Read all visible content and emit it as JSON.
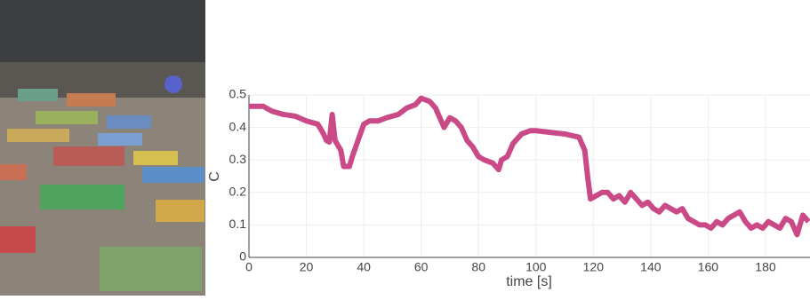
{
  "chart_data": {
    "type": "line",
    "x_label": "time [s]",
    "y_label": "C",
    "x": [
      0,
      5,
      8,
      12,
      16,
      20,
      24,
      26,
      27,
      28,
      29,
      30,
      32,
      33,
      35,
      36,
      38,
      40,
      42,
      45,
      48,
      52,
      55,
      58,
      60,
      63,
      65,
      67,
      68,
      70,
      72,
      74,
      76,
      78,
      80,
      82,
      85,
      87,
      88,
      90,
      92,
      95,
      98,
      100,
      105,
      110,
      115,
      117,
      118,
      119,
      121,
      123,
      125,
      127,
      129,
      131,
      133,
      135,
      137,
      139,
      141,
      143,
      145,
      147,
      149,
      151,
      153,
      155,
      157,
      159,
      161,
      163,
      165,
      167,
      169,
      171,
      173,
      175,
      177,
      179,
      181,
      183,
      185,
      187,
      189,
      191,
      193,
      195
    ],
    "series": [
      {
        "name": "C",
        "color": "#c94a87",
        "values": [
          0.465,
          0.465,
          0.45,
          0.44,
          0.435,
          0.42,
          0.41,
          0.38,
          0.36,
          0.355,
          0.44,
          0.36,
          0.33,
          0.28,
          0.28,
          0.31,
          0.36,
          0.41,
          0.42,
          0.42,
          0.43,
          0.44,
          0.46,
          0.47,
          0.49,
          0.48,
          0.46,
          0.42,
          0.4,
          0.43,
          0.42,
          0.4,
          0.36,
          0.34,
          0.31,
          0.3,
          0.29,
          0.27,
          0.3,
          0.31,
          0.35,
          0.38,
          0.39,
          0.39,
          0.385,
          0.38,
          0.37,
          0.33,
          0.25,
          0.18,
          0.19,
          0.2,
          0.2,
          0.18,
          0.19,
          0.17,
          0.2,
          0.18,
          0.16,
          0.17,
          0.15,
          0.14,
          0.16,
          0.15,
          0.14,
          0.15,
          0.12,
          0.11,
          0.1,
          0.1,
          0.09,
          0.11,
          0.1,
          0.12,
          0.13,
          0.14,
          0.11,
          0.09,
          0.1,
          0.09,
          0.11,
          0.1,
          0.09,
          0.12,
          0.11,
          0.07,
          0.13,
          0.11
        ]
      }
    ],
    "xlim": [
      0,
      195.5
    ],
    "xticks": [
      0,
      20,
      40,
      60,
      80,
      100,
      120,
      140,
      160,
      180
    ],
    "ylim": [
      0,
      0.5
    ],
    "yticks": [
      0,
      0.1,
      0.2,
      0.3,
      0.4,
      0.5
    ],
    "grid": true
  }
}
